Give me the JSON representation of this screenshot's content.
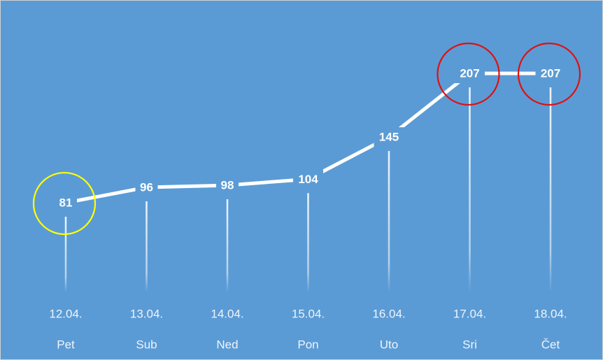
{
  "chart_data": {
    "type": "line",
    "categories": [
      "12.04.",
      "13.04.",
      "14.04.",
      "15.04.",
      "16.04.",
      "17.04.",
      "18.04."
    ],
    "subcategories": [
      "Pet",
      "Sub",
      "Ned",
      "Pon",
      "Uto",
      "Sri",
      "Čet"
    ],
    "values": [
      81,
      96,
      98,
      104,
      145,
      207,
      207
    ],
    "color": "#ffffff",
    "background": "#5b9bd5",
    "highlights": [
      {
        "index": 0,
        "color": "#ffff00"
      },
      {
        "index": 5,
        "color": "#e01010"
      },
      {
        "index": 6,
        "color": "#e01010"
      }
    ]
  }
}
